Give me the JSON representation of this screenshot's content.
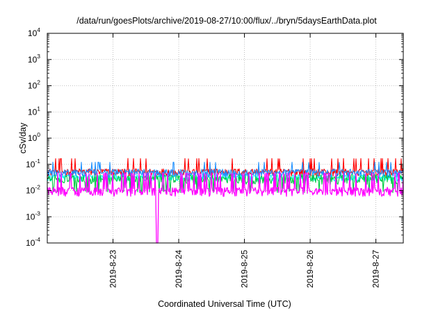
{
  "chart_data": {
    "type": "line",
    "title": "/data/run/goesPlots/archive/2019-08-27/10:00/flux/../bryn/5daysEarthData.plot",
    "xlabel": "Coordinated Universal Time (UTC)",
    "ylabel": "cSv/day",
    "yscale": "log",
    "ylim": [
      0.0001,
      10000
    ],
    "y_ticks": [
      {
        "base": "10",
        "exp": "4"
      },
      {
        "base": "10",
        "exp": "3"
      },
      {
        "base": "10",
        "exp": "2"
      },
      {
        "base": "10",
        "exp": "1"
      },
      {
        "base": "10",
        "exp": "0"
      },
      {
        "base": "10",
        "exp": "-1"
      },
      {
        "base": "10",
        "exp": "-2"
      },
      {
        "base": "10",
        "exp": "-3"
      },
      {
        "base": "10",
        "exp": "-4"
      }
    ],
    "xlim": [
      "2019-08-22 00:00",
      "2019-08-27 10:00"
    ],
    "x_ticks": [
      "2019-8-23",
      "2019-8-24",
      "2019-8-25",
      "2019-8-26",
      "2019-8-27"
    ],
    "grid": true,
    "series": [
      {
        "color": "#ff0000",
        "typical": 0.05,
        "spikes_to": 0.15
      },
      {
        "color": "#00cc44",
        "typical": 0.03,
        "min": 0.015
      },
      {
        "color": "#1e90ff",
        "typical": 0.045,
        "spikes_to": 0.1
      },
      {
        "color": "#00ffff",
        "typical": 0.03
      },
      {
        "color": "#ff00ff",
        "typical": 0.01,
        "min": 0.006,
        "dropout": {
          "x": "2019-08-23 16:00",
          "to": 0.0001
        }
      }
    ]
  }
}
